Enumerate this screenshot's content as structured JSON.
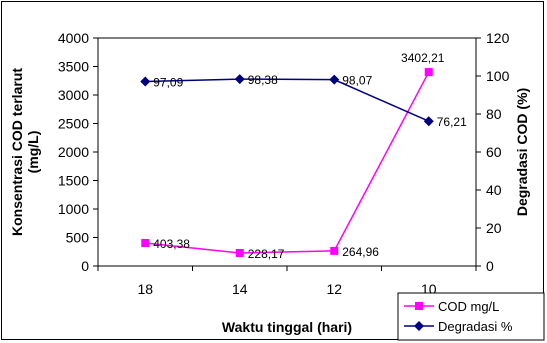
{
  "chart_data": {
    "type": "line",
    "categories": [
      "18",
      "14",
      "12",
      "10"
    ],
    "xlabel": "Waktu tinggal (hari)",
    "ylabel_left": "Konsentrasi COD terlarut (mg/L)",
    "ylabel_right": "Degradasi COD (%)",
    "ylim_left": [
      0,
      4000
    ],
    "ylim_right": [
      0,
      120
    ],
    "yticks_left": [
      0,
      500,
      1000,
      1500,
      2000,
      2500,
      3000,
      3500,
      4000
    ],
    "yticks_right": [
      0,
      20,
      40,
      60,
      80,
      100,
      120
    ],
    "grid": false,
    "legend_position": "bottom-right",
    "series": [
      {
        "name": "COD mg/L",
        "axis": "left",
        "color": "#FF00FF",
        "marker": "square",
        "values": [
          403.38,
          228.17,
          264.96,
          3402.21
        ],
        "labels": [
          "403,38",
          "228,17",
          "264,96",
          "3402,21"
        ]
      },
      {
        "name": "Degradasi %",
        "axis": "right",
        "color": "#000080",
        "marker": "diamond",
        "values": [
          97.09,
          98.38,
          98.07,
          76.21
        ],
        "labels": [
          "97,09",
          "98,38",
          "98,07",
          "76,21"
        ]
      }
    ]
  }
}
